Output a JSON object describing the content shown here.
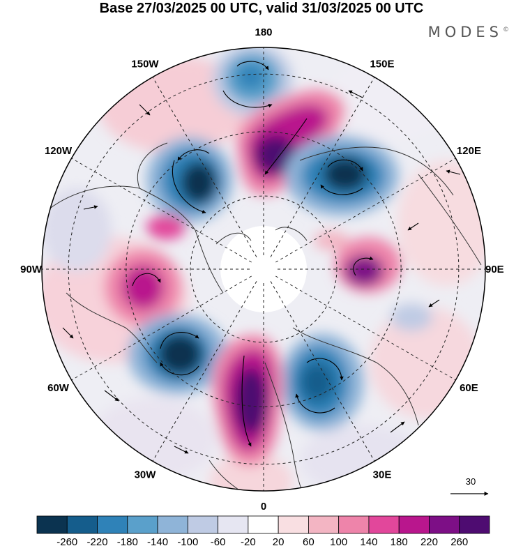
{
  "title": "Base 27/03/2025 00 UTC, valid 31/03/2025 00 UTC",
  "logo": "MODES",
  "logo_mark": "©",
  "lon_labels": [
    "180",
    "150E",
    "120E",
    "90E",
    "60E",
    "30E",
    "0",
    "30W",
    "60W",
    "90W",
    "120W",
    "150W"
  ],
  "vector_ref_label": "30",
  "colorbar": {
    "colors": [
      "#0b3350",
      "#155d8c",
      "#2f82b8",
      "#5aa0cb",
      "#8fb4d8",
      "#bfcbe4",
      "#e6e6f2",
      "#ffffff",
      "#f9dfe2",
      "#f3b5c3",
      "#ee84aa",
      "#e2479b",
      "#b9168d",
      "#7d0f86",
      "#4e0c71"
    ],
    "tick_labels": [
      "-260",
      "-220",
      "-180",
      "-140",
      "-100",
      "-60",
      "-20",
      "20",
      "60",
      "100",
      "140",
      "180",
      "220",
      "260"
    ]
  },
  "colors": {
    "land_outline": "#333333",
    "graticule": "#222222",
    "vectors": "#000000"
  }
}
